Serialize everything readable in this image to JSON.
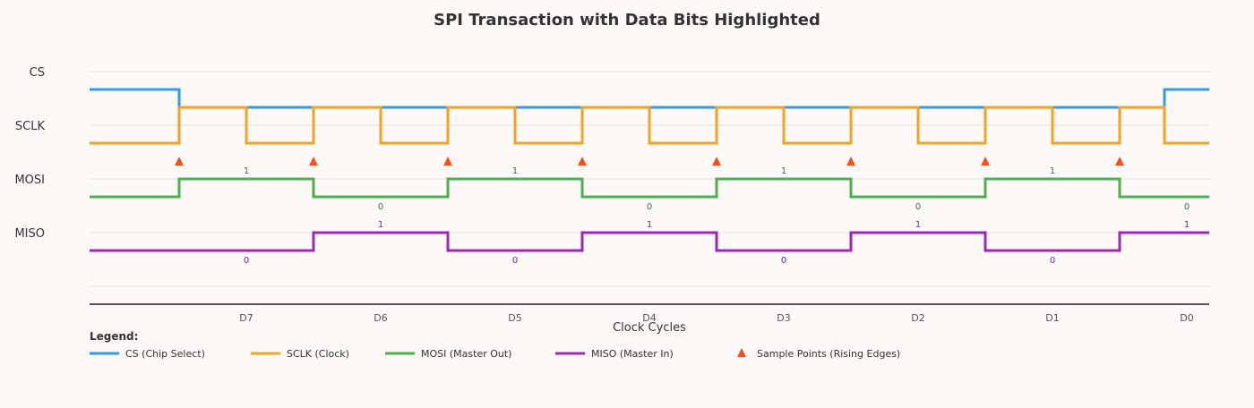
{
  "chart_data": {
    "type": "line",
    "title": "SPI Transaction with Data Bits Highlighted",
    "xlabel": "Clock Cycles",
    "xlim": [
      0,
      12.5
    ],
    "x_ticks": [
      {
        "x": 1.75,
        "label": "D7"
      },
      {
        "x": 3.25,
        "label": "D6"
      },
      {
        "x": 4.75,
        "label": "D5"
      },
      {
        "x": 6.25,
        "label": "D4"
      },
      {
        "x": 7.75,
        "label": "D3"
      },
      {
        "x": 9.25,
        "label": "D2"
      },
      {
        "x": 10.75,
        "label": "D1"
      },
      {
        "x": 12.25,
        "label": "D0"
      }
    ],
    "y_labels": [
      "CS",
      "SCLK",
      "MOSI",
      "MISO"
    ],
    "grid": true,
    "series": [
      {
        "name": "CS (Chip Select)",
        "key": "cs",
        "color": "#3399e8",
        "steps": [
          [
            0,
            1
          ],
          [
            1,
            0
          ],
          [
            12,
            1
          ],
          [
            12.5,
            1
          ]
        ]
      },
      {
        "name": "SCLK (Clock)",
        "key": "sclk",
        "color": "#f5a124",
        "steps": [
          [
            0,
            0
          ],
          [
            1,
            1
          ],
          [
            1.75,
            0
          ],
          [
            2.5,
            1
          ],
          [
            3.25,
            0
          ],
          [
            4,
            1
          ],
          [
            4.75,
            0
          ],
          [
            5.5,
            1
          ],
          [
            6.25,
            0
          ],
          [
            7,
            1
          ],
          [
            7.75,
            0
          ],
          [
            8.5,
            1
          ],
          [
            9.25,
            0
          ],
          [
            10,
            1
          ],
          [
            10.75,
            0
          ],
          [
            11.5,
            1
          ],
          [
            12,
            0
          ],
          [
            12.5,
            0
          ]
        ]
      },
      {
        "name": "MOSI (Master Out)",
        "key": "mosi",
        "color": "#4caf50",
        "steps": [
          [
            0,
            0
          ],
          [
            1,
            1
          ],
          [
            2.5,
            0
          ],
          [
            4,
            1
          ],
          [
            5.5,
            0
          ],
          [
            7,
            1
          ],
          [
            8.5,
            0
          ],
          [
            10,
            1
          ],
          [
            11.5,
            0
          ],
          [
            12.5,
            0
          ]
        ],
        "bits": [
          1,
          0,
          1,
          0,
          1,
          0,
          1,
          0
        ]
      },
      {
        "name": "MISO (Master In)",
        "key": "miso",
        "color": "#9c27b0",
        "steps": [
          [
            0,
            0
          ],
          [
            2.5,
            1
          ],
          [
            4,
            0
          ],
          [
            5.5,
            1
          ],
          [
            7,
            0
          ],
          [
            8.5,
            1
          ],
          [
            10,
            0
          ],
          [
            11.5,
            1
          ],
          [
            12.5,
            1
          ]
        ],
        "bits": [
          0,
          1,
          0,
          1,
          0,
          1,
          0,
          1
        ]
      }
    ],
    "sample_points": {
      "name": "Sample Points (Rising Edges)",
      "color": "#f4511e",
      "x": [
        1,
        2.5,
        4,
        5.5,
        7,
        8.5,
        10,
        11.5
      ]
    },
    "legend": {
      "title": "Legend:",
      "placement": "bottom-left"
    }
  }
}
